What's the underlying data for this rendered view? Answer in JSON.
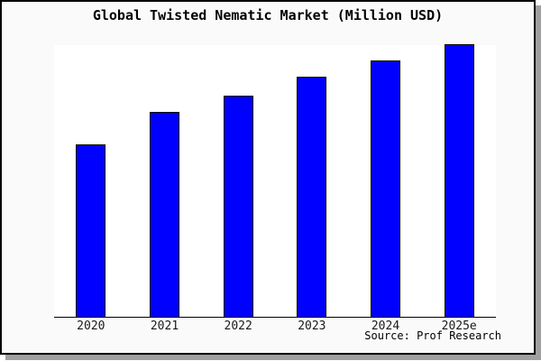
{
  "title": "Global Twisted Nematic Market (Million USD)",
  "source": "Source: Prof Research",
  "colors": {
    "bar_fill": "#0000ff",
    "bar_border": "#000000",
    "plot_background": "#ffffff",
    "page_background": "#fafafa",
    "frame_border": "#000000",
    "frame_shadow": "#a0a0a0"
  },
  "chart_data": {
    "type": "bar",
    "title": "Global Twisted Nematic Market (Million USD)",
    "categories": [
      "2020",
      "2021",
      "2022",
      "2023",
      "2024",
      "2025e"
    ],
    "values": [
      63,
      75,
      81,
      88,
      94,
      100
    ],
    "xlabel": "",
    "ylabel": "",
    "ylim": [
      0,
      100
    ],
    "grid": false,
    "legend": false,
    "y_axis_labels_shown": false,
    "annotation": "Source: Prof Research"
  }
}
